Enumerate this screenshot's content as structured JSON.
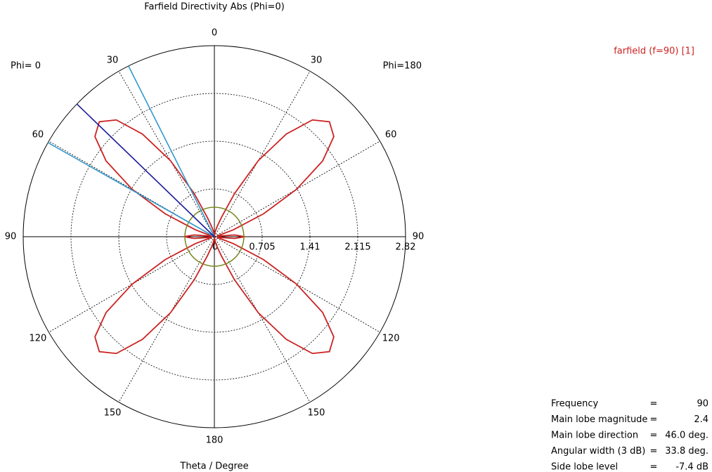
{
  "chart_data": {
    "type": "polar",
    "title": "Farfield Directivity Abs (Phi=0)",
    "axis_label": "Theta / Degree",
    "side_labels": [
      "Phi=  0",
      "Phi=180"
    ],
    "rlim": [
      0,
      2.82
    ],
    "rticks": [
      0,
      0.705,
      1.41,
      2.115,
      2.82
    ],
    "angle_ticks": [
      0,
      30,
      60,
      90,
      120,
      150,
      180,
      {
        "value": 210,
        "label": "150"
      },
      {
        "value": 240,
        "label": "120"
      },
      {
        "value": 270,
        "label": "90"
      },
      {
        "value": 300,
        "label": "60"
      },
      {
        "value": 330,
        "label": "30"
      }
    ],
    "grid": true,
    "series": [
      {
        "name": "farfield (f=90) [1]",
        "color": "#cc2222",
        "theta": [
          0,
          5,
          10,
          15,
          20,
          25,
          30,
          35,
          40,
          45,
          50,
          55,
          60,
          65,
          70,
          75,
          80,
          85,
          90,
          95,
          100,
          105,
          110,
          115,
          120,
          125,
          130,
          135,
          140,
          145,
          150,
          155,
          160,
          165,
          170,
          175,
          180,
          185,
          190,
          195,
          200,
          205,
          210,
          215,
          220,
          225,
          230,
          235,
          240,
          245,
          250,
          255,
          260,
          265,
          270,
          275,
          280,
          285,
          290,
          295,
          300,
          305,
          310,
          315,
          320,
          325,
          330,
          335,
          340,
          345,
          350,
          355
        ],
        "values": [
          0,
          0.03,
          0.08,
          0.15,
          0.3,
          0.7,
          1.3,
          1.85,
          2.25,
          2.4,
          2.3,
          1.95,
          1.4,
          0.8,
          0.3,
          0.05,
          0.05,
          0.3,
          0.45,
          0.3,
          0.05,
          0.05,
          0.3,
          0.8,
          1.4,
          1.95,
          2.3,
          2.4,
          2.25,
          1.85,
          1.3,
          0.7,
          0.3,
          0.15,
          0.08,
          0.03,
          0,
          0.03,
          0.08,
          0.15,
          0.3,
          0.7,
          1.3,
          1.85,
          2.25,
          2.4,
          2.3,
          1.95,
          1.4,
          0.8,
          0.3,
          0.05,
          0.05,
          0.3,
          0.45,
          0.3,
          0.05,
          0.05,
          0.3,
          0.8,
          1.4,
          1.95,
          2.3,
          2.4,
          2.25,
          1.85,
          1.3,
          0.7,
          0.3,
          0.15,
          0.08,
          0.03
        ]
      }
    ],
    "main_lobe_direction": 46,
    "main_lobe_color": "#1a1a99",
    "beamwidth_directions": [
      26.7,
      60.5
    ],
    "beamwidth_color": "#3399cc",
    "side_lobe_level_radius": 0.435,
    "side_lobe_color": "#778822",
    "info": [
      {
        "label": "Frequency",
        "value": "90"
      },
      {
        "label": "Main lobe magnitude",
        "value": "2.4"
      },
      {
        "label": "Main lobe direction",
        "value": "46.0 deg."
      },
      {
        "label": "Angular width (3 dB)",
        "value": "33.8 deg."
      },
      {
        "label": "Side lobe level",
        "value": "-7.4 dB"
      }
    ],
    "info_separator": "="
  }
}
